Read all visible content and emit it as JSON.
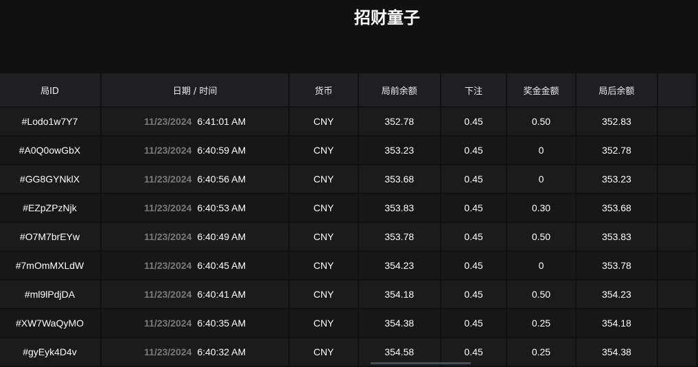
{
  "title": "招财童子",
  "columns": [
    "局ID",
    "日期 / 时间",
    "货币",
    "局前余额",
    "下注",
    "奖金金额",
    "局后余额",
    ""
  ],
  "rows": [
    {
      "id": "#Lodo1w7Y7",
      "date": "11/23/2024",
      "time": "6:41:01 AM",
      "currency": "CNY",
      "before": "352.78",
      "bet": "0.45",
      "win": "0.50",
      "after": "352.83"
    },
    {
      "id": "#A0Q0owGbX",
      "date": "11/23/2024",
      "time": "6:40:59 AM",
      "currency": "CNY",
      "before": "353.23",
      "bet": "0.45",
      "win": "0",
      "after": "352.78"
    },
    {
      "id": "#GG8GYNklX",
      "date": "11/23/2024",
      "time": "6:40:56 AM",
      "currency": "CNY",
      "before": "353.68",
      "bet": "0.45",
      "win": "0",
      "after": "353.23"
    },
    {
      "id": "#EZpZPzNjk",
      "date": "11/23/2024",
      "time": "6:40:53 AM",
      "currency": "CNY",
      "before": "353.83",
      "bet": "0.45",
      "win": "0.30",
      "after": "353.68"
    },
    {
      "id": "#O7M7brEYw",
      "date": "11/23/2024",
      "time": "6:40:49 AM",
      "currency": "CNY",
      "before": "353.78",
      "bet": "0.45",
      "win": "0.50",
      "after": "353.83"
    },
    {
      "id": "#7mOmMXLdW",
      "date": "11/23/2024",
      "time": "6:40:45 AM",
      "currency": "CNY",
      "before": "354.23",
      "bet": "0.45",
      "win": "0",
      "after": "353.78"
    },
    {
      "id": "#ml9lPdjDA",
      "date": "11/23/2024",
      "time": "6:40:41 AM",
      "currency": "CNY",
      "before": "354.18",
      "bet": "0.45",
      "win": "0.50",
      "after": "354.23"
    },
    {
      "id": "#XW7WaQyMO",
      "date": "11/23/2024",
      "time": "6:40:35 AM",
      "currency": "CNY",
      "before": "354.38",
      "bet": "0.45",
      "win": "0.25",
      "after": "354.18"
    },
    {
      "id": "#gyEyk4D4v",
      "date": "11/23/2024",
      "time": "6:40:32 AM",
      "currency": "CNY",
      "before": "354.58",
      "bet": "0.45",
      "win": "0.25",
      "after": "354.38"
    }
  ]
}
